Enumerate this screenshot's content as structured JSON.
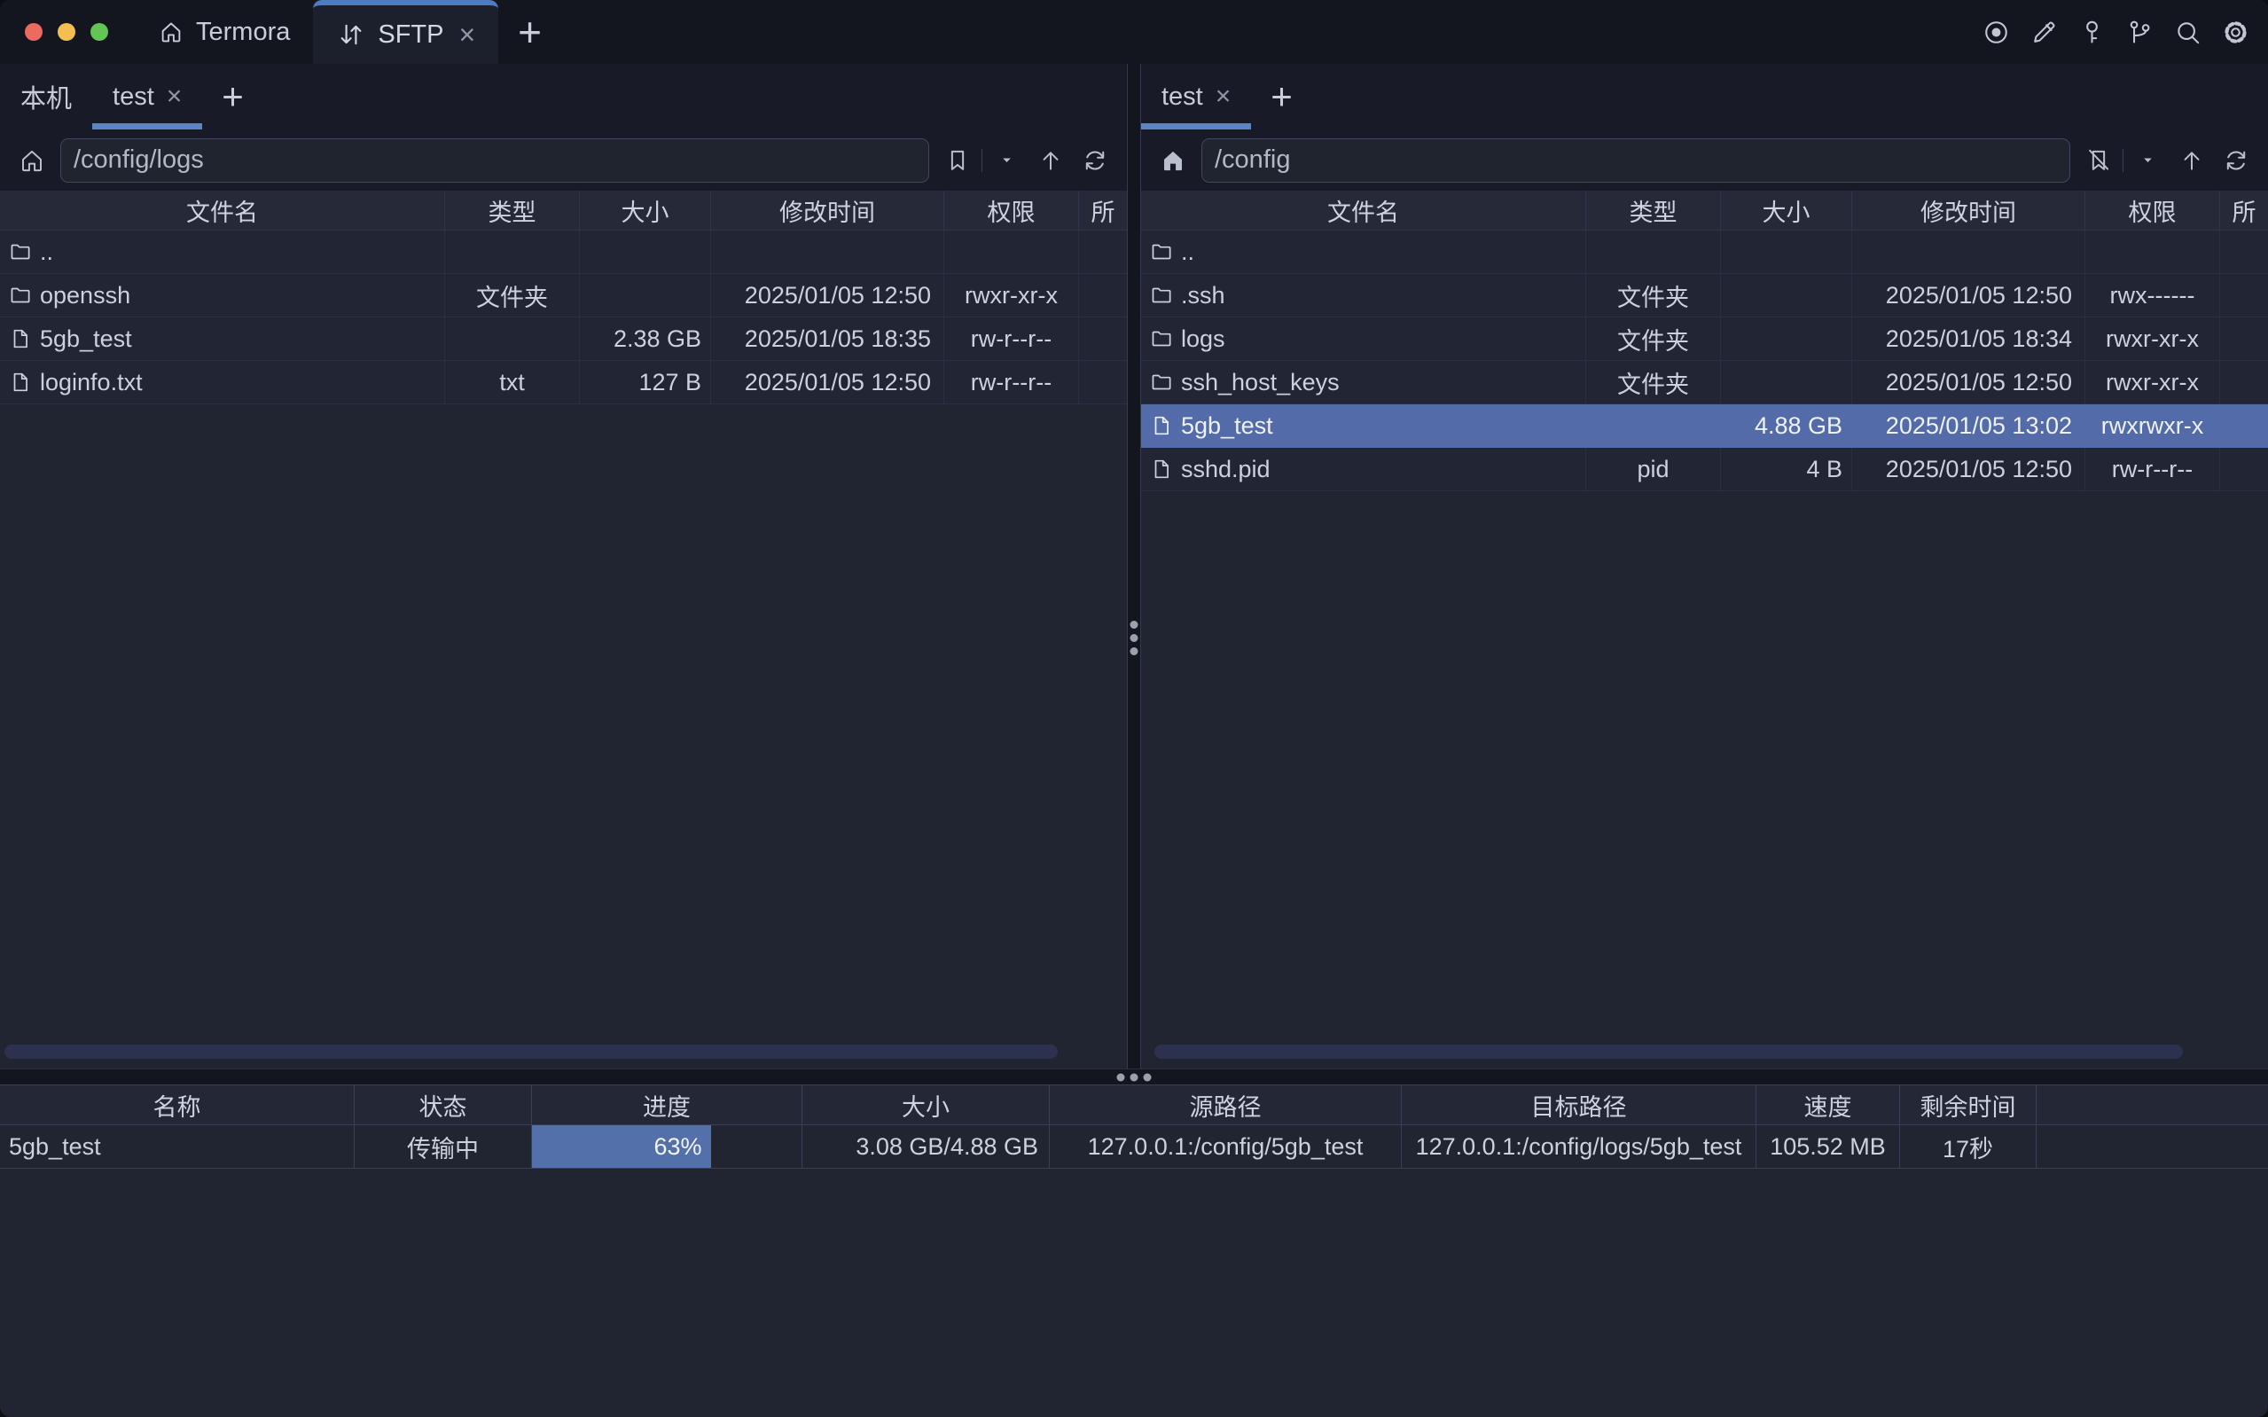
{
  "titlebar": {
    "app_tab_label": "Termora",
    "sftp_tab_label": "SFTP",
    "close_glyph": "×",
    "new_tab_glyph": "+",
    "icons": [
      "record-icon",
      "edit-icon",
      "key-icon",
      "branch-icon",
      "search-icon",
      "settings-icon"
    ]
  },
  "left_pane": {
    "tabs": [
      {
        "label": "本机",
        "active": false
      },
      {
        "label": "test",
        "active": true,
        "closable": true
      }
    ],
    "new_tab_glyph": "+",
    "path": "/config/logs",
    "columns": [
      "文件名",
      "类型",
      "大小",
      "修改时间",
      "权限",
      "所"
    ],
    "rows": [
      {
        "name": "..",
        "icon": "folder",
        "type": "",
        "size": "",
        "modified": "",
        "perms": "",
        "selected": false
      },
      {
        "name": "openssh",
        "icon": "folder",
        "type": "文件夹",
        "size": "",
        "modified": "2025/01/05 12:50",
        "perms": "rwxr-xr-x",
        "selected": false
      },
      {
        "name": "5gb_test",
        "icon": "file",
        "type": "",
        "size": "2.38 GB",
        "modified": "2025/01/05 18:35",
        "perms": "rw-r--r--",
        "selected": false
      },
      {
        "name": "loginfo.txt",
        "icon": "file",
        "type": "txt",
        "size": "127 B",
        "modified": "2025/01/05 12:50",
        "perms": "rw-r--r--",
        "selected": false
      }
    ]
  },
  "right_pane": {
    "tabs": [
      {
        "label": "test",
        "active": true,
        "closable": true
      }
    ],
    "new_tab_glyph": "+",
    "path": "/config",
    "columns": [
      "文件名",
      "类型",
      "大小",
      "修改时间",
      "权限",
      "所"
    ],
    "rows": [
      {
        "name": "..",
        "icon": "folder",
        "type": "",
        "size": "",
        "modified": "",
        "perms": "",
        "selected": false
      },
      {
        "name": ".ssh",
        "icon": "folder",
        "type": "文件夹",
        "size": "",
        "modified": "2025/01/05 12:50",
        "perms": "rwx------",
        "selected": false
      },
      {
        "name": "logs",
        "icon": "folder",
        "type": "文件夹",
        "size": "",
        "modified": "2025/01/05 18:34",
        "perms": "rwxr-xr-x",
        "selected": false
      },
      {
        "name": "ssh_host_keys",
        "icon": "folder",
        "type": "文件夹",
        "size": "",
        "modified": "2025/01/05 12:50",
        "perms": "rwxr-xr-x",
        "selected": false
      },
      {
        "name": "5gb_test",
        "icon": "file",
        "type": "",
        "size": "4.88 GB",
        "modified": "2025/01/05 13:02",
        "perms": "rwxrwxr-x",
        "selected": true
      },
      {
        "name": "sshd.pid",
        "icon": "file",
        "type": "pid",
        "size": "4 B",
        "modified": "2025/01/05 12:50",
        "perms": "rw-r--r--",
        "selected": false
      }
    ]
  },
  "transfer_panel": {
    "columns": [
      "名称",
      "状态",
      "进度",
      "大小",
      "源路径",
      "目标路径",
      "速度",
      "剩余时间",
      ""
    ],
    "rows": [
      {
        "name": "5gb_test",
        "status": "传输中",
        "progress_label": "63%",
        "progress_percent": 63,
        "size": "3.08 GB/4.88 GB",
        "source": "127.0.0.1:/config/5gb_test",
        "target": "127.0.0.1:/config/logs/5gb_test",
        "speed": "105.52 MB",
        "remaining": "17秒"
      }
    ]
  },
  "colors": {
    "accent": "#5b86c5",
    "active_tab_top_border": "#4d7cc2",
    "selection": "#536ca9",
    "progress_fill": "#5470ab",
    "traffic_red": "#ec6a5e",
    "traffic_yellow": "#f4bf50",
    "traffic_green": "#62c554"
  }
}
